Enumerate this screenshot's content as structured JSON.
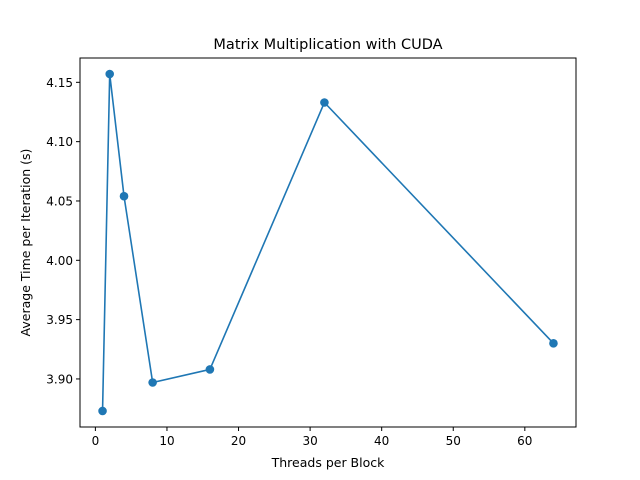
{
  "chart_data": {
    "type": "line",
    "title": "Matrix Multiplication with CUDA",
    "xlabel": "Threads per Block",
    "ylabel": "Average Time per Iteration (s)",
    "xlim": [
      -2.15,
      67.15
    ],
    "ylim": [
      3.8595,
      4.1705
    ],
    "xticks": [
      0,
      10,
      20,
      30,
      40,
      50,
      60
    ],
    "yticks": [
      3.9,
      3.95,
      4.0,
      4.05,
      4.1,
      4.15
    ],
    "ytick_labels": [
      "3.90",
      "3.95",
      "4.00",
      "4.05",
      "4.10",
      "4.15"
    ],
    "grid": false,
    "line_color": "#1f77b4",
    "marker": "circle",
    "x": [
      1,
      2,
      4,
      8,
      16,
      32,
      64
    ],
    "y": [
      3.873,
      4.157,
      4.054,
      3.897,
      3.908,
      4.133,
      3.93
    ]
  }
}
